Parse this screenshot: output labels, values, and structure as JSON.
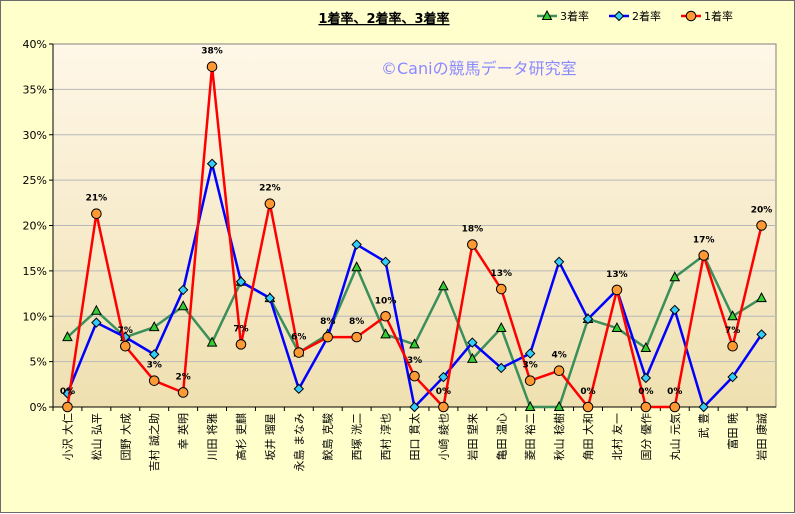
{
  "chart_data": {
    "type": "line",
    "title": "1着率、2着率、3着率",
    "watermark": "©Caniの競馬データ研究室",
    "ylim": [
      0,
      40
    ],
    "yticks": [
      "0%",
      "5%",
      "10%",
      "15%",
      "20%",
      "25%",
      "30%",
      "35%",
      "40%"
    ],
    "categories": [
      "小沢 大仁",
      "松山 弘平",
      "団野 大成",
      "吉村 誠之助",
      "幸 英明",
      "川田 将雅",
      "高杉 吏麒",
      "坂井 瑠星",
      "永島 まなみ",
      "鮫島 克駿",
      "西塚 洸二",
      "西村 淳也",
      "田口 貫太",
      "小崎 綾也",
      "岩田 望来",
      "亀田 温心",
      "菱田 裕二",
      "秋山 稔樹",
      "角田 大和",
      "北村 友一",
      "国分 優作",
      "丸山 元気",
      "武 豊",
      "富田 暁",
      "岩田 康誠"
    ],
    "legend_position": "top-right",
    "grid": true,
    "series": [
      {
        "name": "3着率",
        "color": "#3a8f5a",
        "marker": "triangle",
        "markerColor": "#33cc33",
        "values": [
          7.7,
          10.6,
          7.7,
          8.8,
          11.1,
          7.1,
          13.8,
          12.0,
          6.0,
          8.0,
          15.4,
          8.0,
          6.9,
          13.3,
          5.3,
          8.7,
          0.0,
          0.0,
          9.7,
          8.7,
          6.5,
          14.3,
          16.7,
          10.0,
          12.0
        ]
      },
      {
        "name": "2着率",
        "color": "#0000ff",
        "marker": "diamond",
        "markerColor": "#33ccff",
        "values": [
          1.5,
          9.3,
          7.7,
          5.8,
          12.9,
          26.8,
          13.8,
          12.0,
          2.0,
          7.7,
          17.9,
          16.0,
          0.0,
          3.3,
          7.1,
          4.3,
          5.9,
          16.0,
          9.7,
          12.9,
          3.2,
          10.7,
          0.0,
          3.3,
          8.0
        ]
      },
      {
        "name": "1着率",
        "color": "#ff0000",
        "marker": "circle",
        "markerColor": "#ff9933",
        "values": [
          0.0,
          21.3,
          6.7,
          2.9,
          1.6,
          37.5,
          6.9,
          22.4,
          6.0,
          7.7,
          7.7,
          10.0,
          3.4,
          0.0,
          17.9,
          13.0,
          2.9,
          4.0,
          0.0,
          12.9,
          0.0,
          0.0,
          16.7,
          6.7,
          20.0
        ],
        "labels": [
          "0%",
          "21%",
          "7%",
          "3%",
          "2%",
          "38%",
          "7%",
          "22%",
          "6%",
          "8%",
          "8%",
          "10%",
          "3%",
          "0%",
          "18%",
          "13%",
          "3%",
          "4%",
          "0%",
          "13%",
          "0%",
          "0%",
          "17%",
          "7%",
          "20%"
        ]
      }
    ],
    "legend_order": [
      0,
      1,
      2
    ],
    "colors": {
      "frame_bg": "#ffffcc",
      "plot_top": "#fff7e8",
      "plot_bottom": "#efe0b0",
      "grid": "#b8b8b8"
    }
  }
}
